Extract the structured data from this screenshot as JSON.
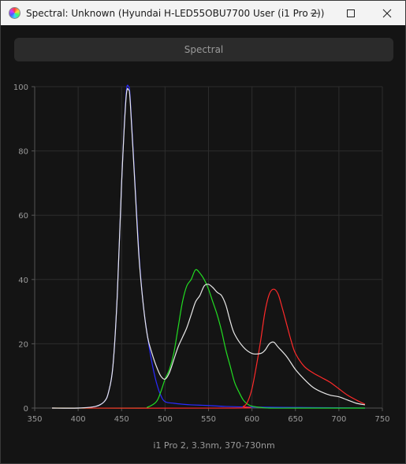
{
  "window": {
    "title": "Spectral: Unknown (Hyundai H-LED55OBU7700 User (i1 Pro 2))",
    "icon": "color-wheel-icon"
  },
  "tab": {
    "label": "Spectral"
  },
  "chart_data": {
    "type": "line",
    "title": "",
    "xlabel": "i1 Pro 2, 3.3nm, 370-730nm",
    "ylabel": "",
    "xlim": [
      350,
      750
    ],
    "ylim": [
      0,
      100
    ],
    "x_ticks": [
      350,
      400,
      450,
      500,
      550,
      600,
      650,
      700,
      750
    ],
    "y_ticks": [
      0,
      20,
      40,
      60,
      80,
      100
    ],
    "grid": true,
    "legend": "none",
    "series": [
      {
        "color": "#2a2aff",
        "x": [
          370,
          400,
          420,
          430,
          435,
          440,
          445,
          450,
          455,
          458,
          460,
          465,
          470,
          475,
          480,
          485,
          490,
          495,
          500,
          510,
          520,
          530,
          550,
          570,
          600,
          650,
          700,
          730
        ],
        "y": [
          0,
          0,
          0.5,
          2,
          5,
          13,
          35,
          70,
          97,
          100,
          96,
          72,
          48,
          32,
          22,
          14,
          8,
          4,
          2,
          1.5,
          1.2,
          1,
          0.8,
          0.5,
          0.3,
          0.2,
          0.1,
          0
        ]
      },
      {
        "color": "#22dd22",
        "x": [
          370,
          470,
          480,
          490,
          495,
          500,
          505,
          510,
          515,
          520,
          525,
          530,
          535,
          540,
          545,
          550,
          555,
          560,
          565,
          570,
          575,
          580,
          585,
          590,
          595,
          600,
          610,
          620,
          650,
          730
        ],
        "y": [
          0,
          0,
          0.3,
          2,
          5,
          9,
          12,
          17,
          25,
          33,
          38,
          40,
          43,
          42,
          40,
          37,
          33,
          29,
          24,
          18,
          13,
          8,
          5,
          2.5,
          1.2,
          0.6,
          0.2,
          0,
          0,
          0
        ]
      },
      {
        "color": "#ff2a2a",
        "x": [
          370,
          580,
          590,
          595,
          600,
          605,
          610,
          615,
          620,
          625,
          630,
          635,
          640,
          645,
          650,
          660,
          670,
          680,
          690,
          700,
          710,
          720,
          730
        ],
        "y": [
          0,
          0,
          0.5,
          2,
          6,
          13,
          21,
          30,
          35.5,
          37,
          35.5,
          31,
          26,
          21,
          17,
          13,
          11,
          9.5,
          8,
          6,
          4,
          2.5,
          1.2
        ]
      },
      {
        "color": "#e8e8e8",
        "x": [
          370,
          400,
          420,
          430,
          435,
          440,
          445,
          450,
          455,
          458,
          460,
          465,
          470,
          475,
          480,
          485,
          490,
          495,
          500,
          505,
          510,
          515,
          520,
          525,
          530,
          535,
          540,
          545,
          550,
          555,
          560,
          565,
          570,
          575,
          580,
          590,
          600,
          610,
          615,
          620,
          625,
          630,
          640,
          650,
          660,
          670,
          680,
          690,
          700,
          710,
          720,
          730
        ],
        "y": [
          0,
          0,
          0.5,
          2,
          5,
          13,
          35,
          70,
          96,
          99,
          95,
          71,
          47,
          32,
          22,
          17,
          13,
          10,
          9,
          11,
          15,
          19,
          22,
          25,
          29,
          33,
          35,
          38,
          38.5,
          37.5,
          36,
          35,
          32,
          27,
          23,
          19,
          17,
          17,
          18,
          20,
          20.5,
          19,
          16,
          12,
          9,
          6.5,
          5,
          4,
          3.5,
          2.5,
          1.5,
          1
        ]
      }
    ]
  }
}
